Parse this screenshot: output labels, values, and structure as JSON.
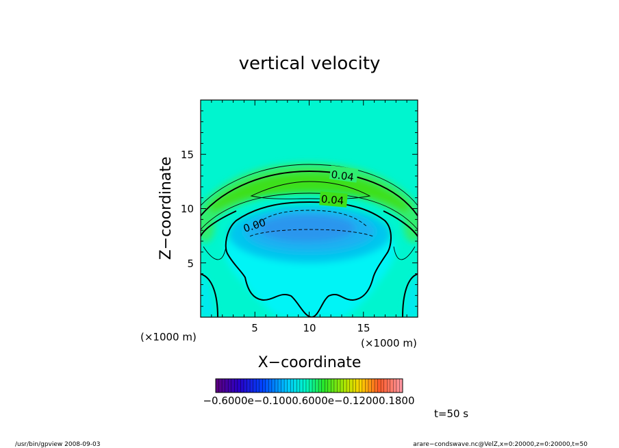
{
  "chart_data": {
    "type": "heatmap",
    "title": "vertical velocity",
    "xlabel": "X−coordinate",
    "ylabel": "Z−coordinate",
    "x_unit_left": "(×1000 m)",
    "x_unit_right": "(×1000 m)",
    "xlim": [
      0,
      20
    ],
    "ylim": [
      0,
      20
    ],
    "x_ticks": [
      5,
      10,
      15
    ],
    "y_ticks": [
      5,
      10,
      15
    ],
    "colorbar_ticklabels": "−0.6000e−0.1000.6000e−0.12000.1800",
    "colorbar_range": [
      -0.06,
      0.18
    ],
    "contour_labels": [
      {
        "text": "0.04",
        "x": 13.2,
        "z": 12.9
      },
      {
        "text": "0.04",
        "x": 12.8,
        "z": 10.6
      },
      {
        "text": "0.00",
        "x": 5.0,
        "z": 8.6
      }
    ],
    "time_label": "t=50 s",
    "footer_left": "/usr/bin/gpview   2008-09-03",
    "footer_right": "arare−condswave.nc@VelZ,x=0:20000,z=0:20000,t=50",
    "grid": false,
    "legend": "bottom colorbar"
  }
}
